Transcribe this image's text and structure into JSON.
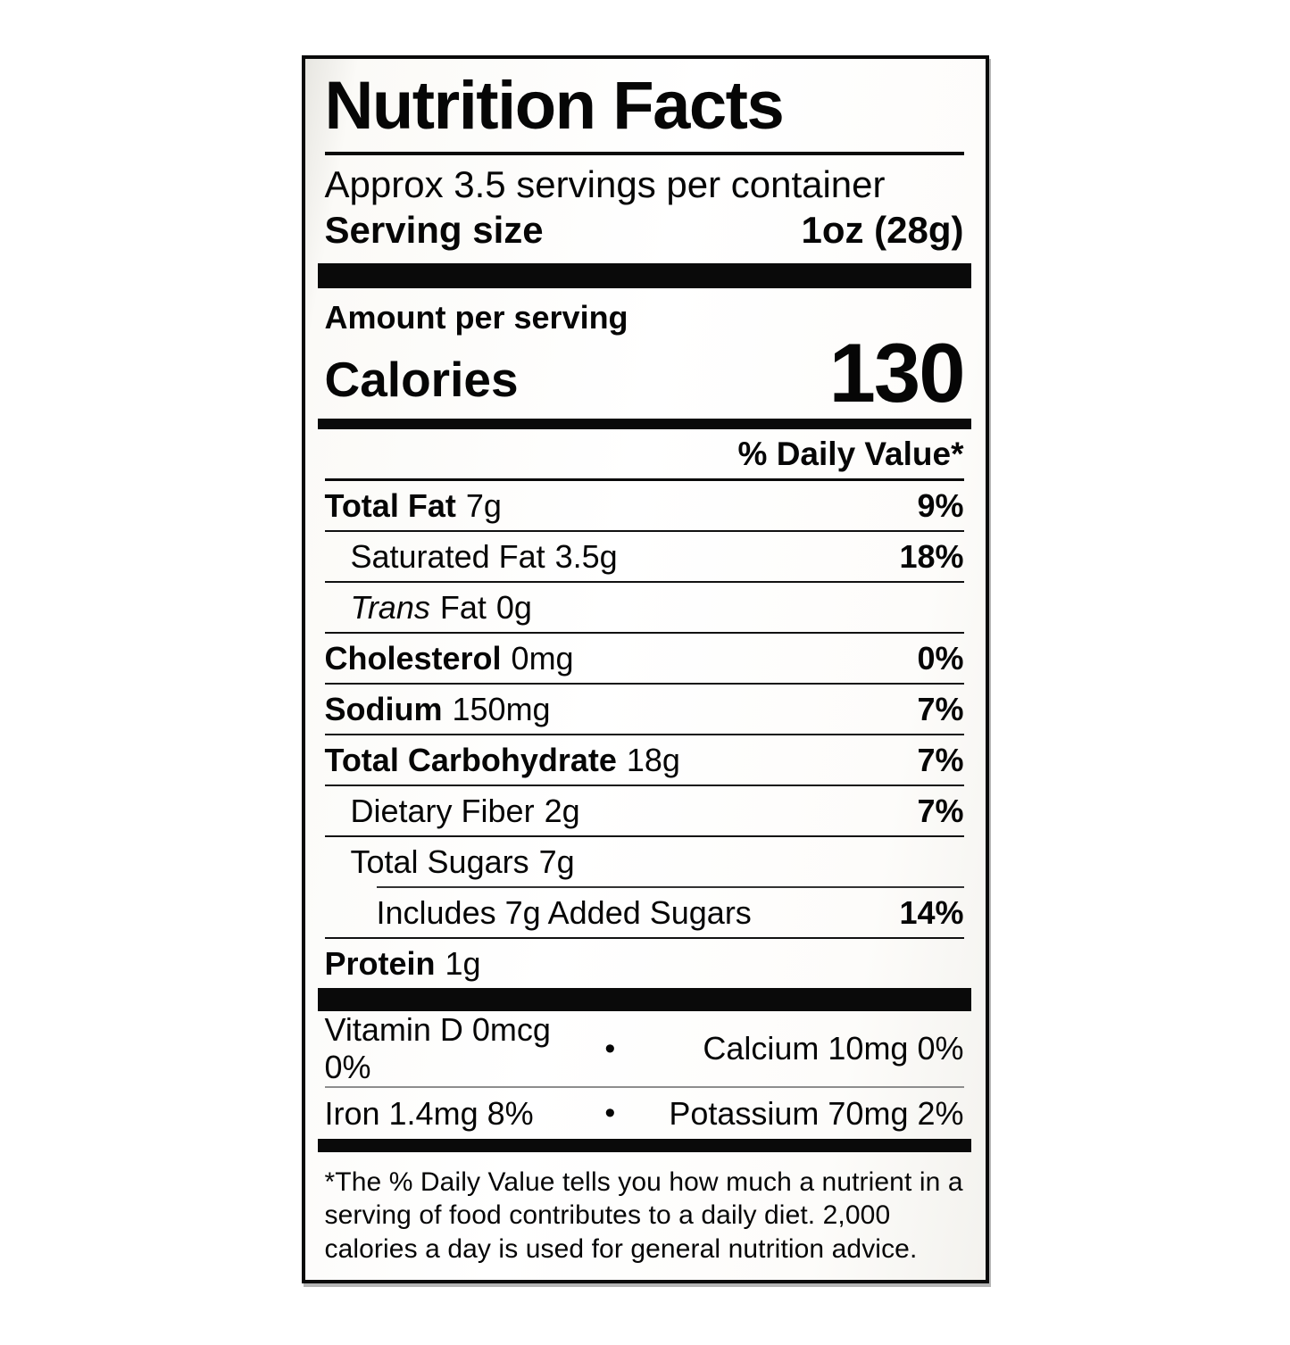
{
  "colors": {
    "ink": "#0a0a0a",
    "label_background": "#ffffff",
    "label_background_edge": "#e7e6e1"
  },
  "label": {
    "title": "Nutrition Facts",
    "servings_per_container": "Approx 3.5 servings per container",
    "serving_size": {
      "label": "Serving size",
      "value": "1oz (28g)"
    },
    "amount_per_serving": "Amount per serving",
    "calories": {
      "label": "Calories",
      "value": "130"
    },
    "daily_value_header": "% Daily Value*",
    "nutrients": [
      {
        "name": "Total Fat",
        "amount": "7g",
        "dv": "9%"
      },
      {
        "name": "Saturated Fat",
        "amount": "3.5g",
        "dv": "18%"
      },
      {
        "name_italic": "Trans",
        "name": "Fat",
        "amount": "0g",
        "dv": ""
      },
      {
        "name": "Cholesterol",
        "amount": "0mg",
        "dv": "0%"
      },
      {
        "name": "Sodium",
        "amount": "150mg",
        "dv": "7%"
      },
      {
        "name": "Total Carbohydrate",
        "amount": "18g",
        "dv": "7%"
      },
      {
        "name": "Dietary Fiber",
        "amount": "2g",
        "dv": "7%"
      },
      {
        "name": "Total Sugars",
        "amount": "7g",
        "dv": ""
      },
      {
        "name": "Includes 7g Added Sugars",
        "amount": "",
        "dv": "14%"
      },
      {
        "name": "Protein",
        "amount": "1g",
        "dv": ""
      }
    ],
    "bullet_char": "•",
    "micronutrients": [
      {
        "left": "Vitamin D 0mcg 0%",
        "right": "Calcium 10mg 0%"
      },
      {
        "left": "Iron 1.4mg 8%",
        "right": "Potassium 70mg 2%"
      }
    ],
    "footnote": "*The % Daily Value tells you how much a nutrient in a serving of food contributes to a daily diet. 2,000 calories a day is used for general nutrition advice."
  }
}
